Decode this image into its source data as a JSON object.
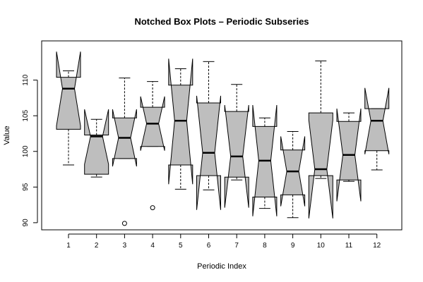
{
  "chart_data": {
    "type": "box",
    "variant": "notched",
    "title": "Notched Box Plots – Periodic Subseries",
    "xlabel": "Periodic Index",
    "ylabel": "Value",
    "categories": [
      "1",
      "2",
      "3",
      "4",
      "5",
      "6",
      "7",
      "8",
      "9",
      "10",
      "11",
      "12"
    ],
    "yticks": [
      90,
      95,
      100,
      105,
      110
    ],
    "ylim": [
      89,
      115.5
    ],
    "fill_color": "#bebebe",
    "boxes": [
      {
        "whisker_low": 98.1,
        "q1": 103.1,
        "median": 108.8,
        "q3": 110.4,
        "whisker_high": 111.3,
        "notch": [
          103.6,
          114.0
        ],
        "outliers": []
      },
      {
        "whisker_low": 96.4,
        "q1": 96.8,
        "median": 102.1,
        "q3": 102.3,
        "whisker_high": 104.5,
        "notch": [
          98.2,
          105.9
        ],
        "outliers": []
      },
      {
        "whisker_low": 99.0,
        "q1": 99.0,
        "median": 101.9,
        "q3": 104.7,
        "whisker_high": 110.3,
        "notch": [
          97.9,
          105.9
        ],
        "outliers": [
          89.9
        ]
      },
      {
        "whisker_low": 100.7,
        "q1": 100.7,
        "median": 103.9,
        "q3": 106.2,
        "whisker_high": 109.8,
        "notch": [
          100.1,
          107.7
        ],
        "outliers": [
          92.1
        ]
      },
      {
        "whisker_low": 94.7,
        "q1": 98.1,
        "median": 104.3,
        "q3": 109.3,
        "whisker_high": 111.6,
        "notch": [
          95.4,
          113.0
        ],
        "outliers": []
      },
      {
        "whisker_low": 94.6,
        "q1": 96.6,
        "median": 99.8,
        "q3": 106.8,
        "whisker_high": 112.6,
        "notch": [
          91.8,
          107.8
        ],
        "outliers": []
      },
      {
        "whisker_low": 96.0,
        "q1": 96.4,
        "median": 99.3,
        "q3": 105.6,
        "whisker_high": 109.4,
        "notch": [
          92.1,
          106.5
        ],
        "outliers": []
      },
      {
        "whisker_low": 92.0,
        "q1": 93.6,
        "median": 98.7,
        "q3": 103.5,
        "whisker_high": 104.7,
        "notch": [
          90.9,
          106.5
        ],
        "outliers": []
      },
      {
        "whisker_low": 90.7,
        "q1": 93.9,
        "median": 97.2,
        "q3": 100.2,
        "whisker_high": 102.8,
        "notch": [
          92.3,
          102.1
        ],
        "outliers": []
      },
      {
        "whisker_low": 96.2,
        "q1": 96.6,
        "median": 97.5,
        "q3": 105.4,
        "whisker_high": 112.7,
        "notch": [
          90.6,
          104.4
        ],
        "outliers": []
      },
      {
        "whisker_low": 95.8,
        "q1": 96.0,
        "median": 99.5,
        "q3": 104.2,
        "whisker_high": 105.4,
        "notch": [
          93.0,
          106.0
        ],
        "outliers": []
      },
      {
        "whisker_low": 97.4,
        "q1": 100.1,
        "median": 104.3,
        "q3": 106.0,
        "whisker_high": 106.0,
        "notch": [
          99.6,
          108.9
        ],
        "outliers": []
      }
    ]
  }
}
